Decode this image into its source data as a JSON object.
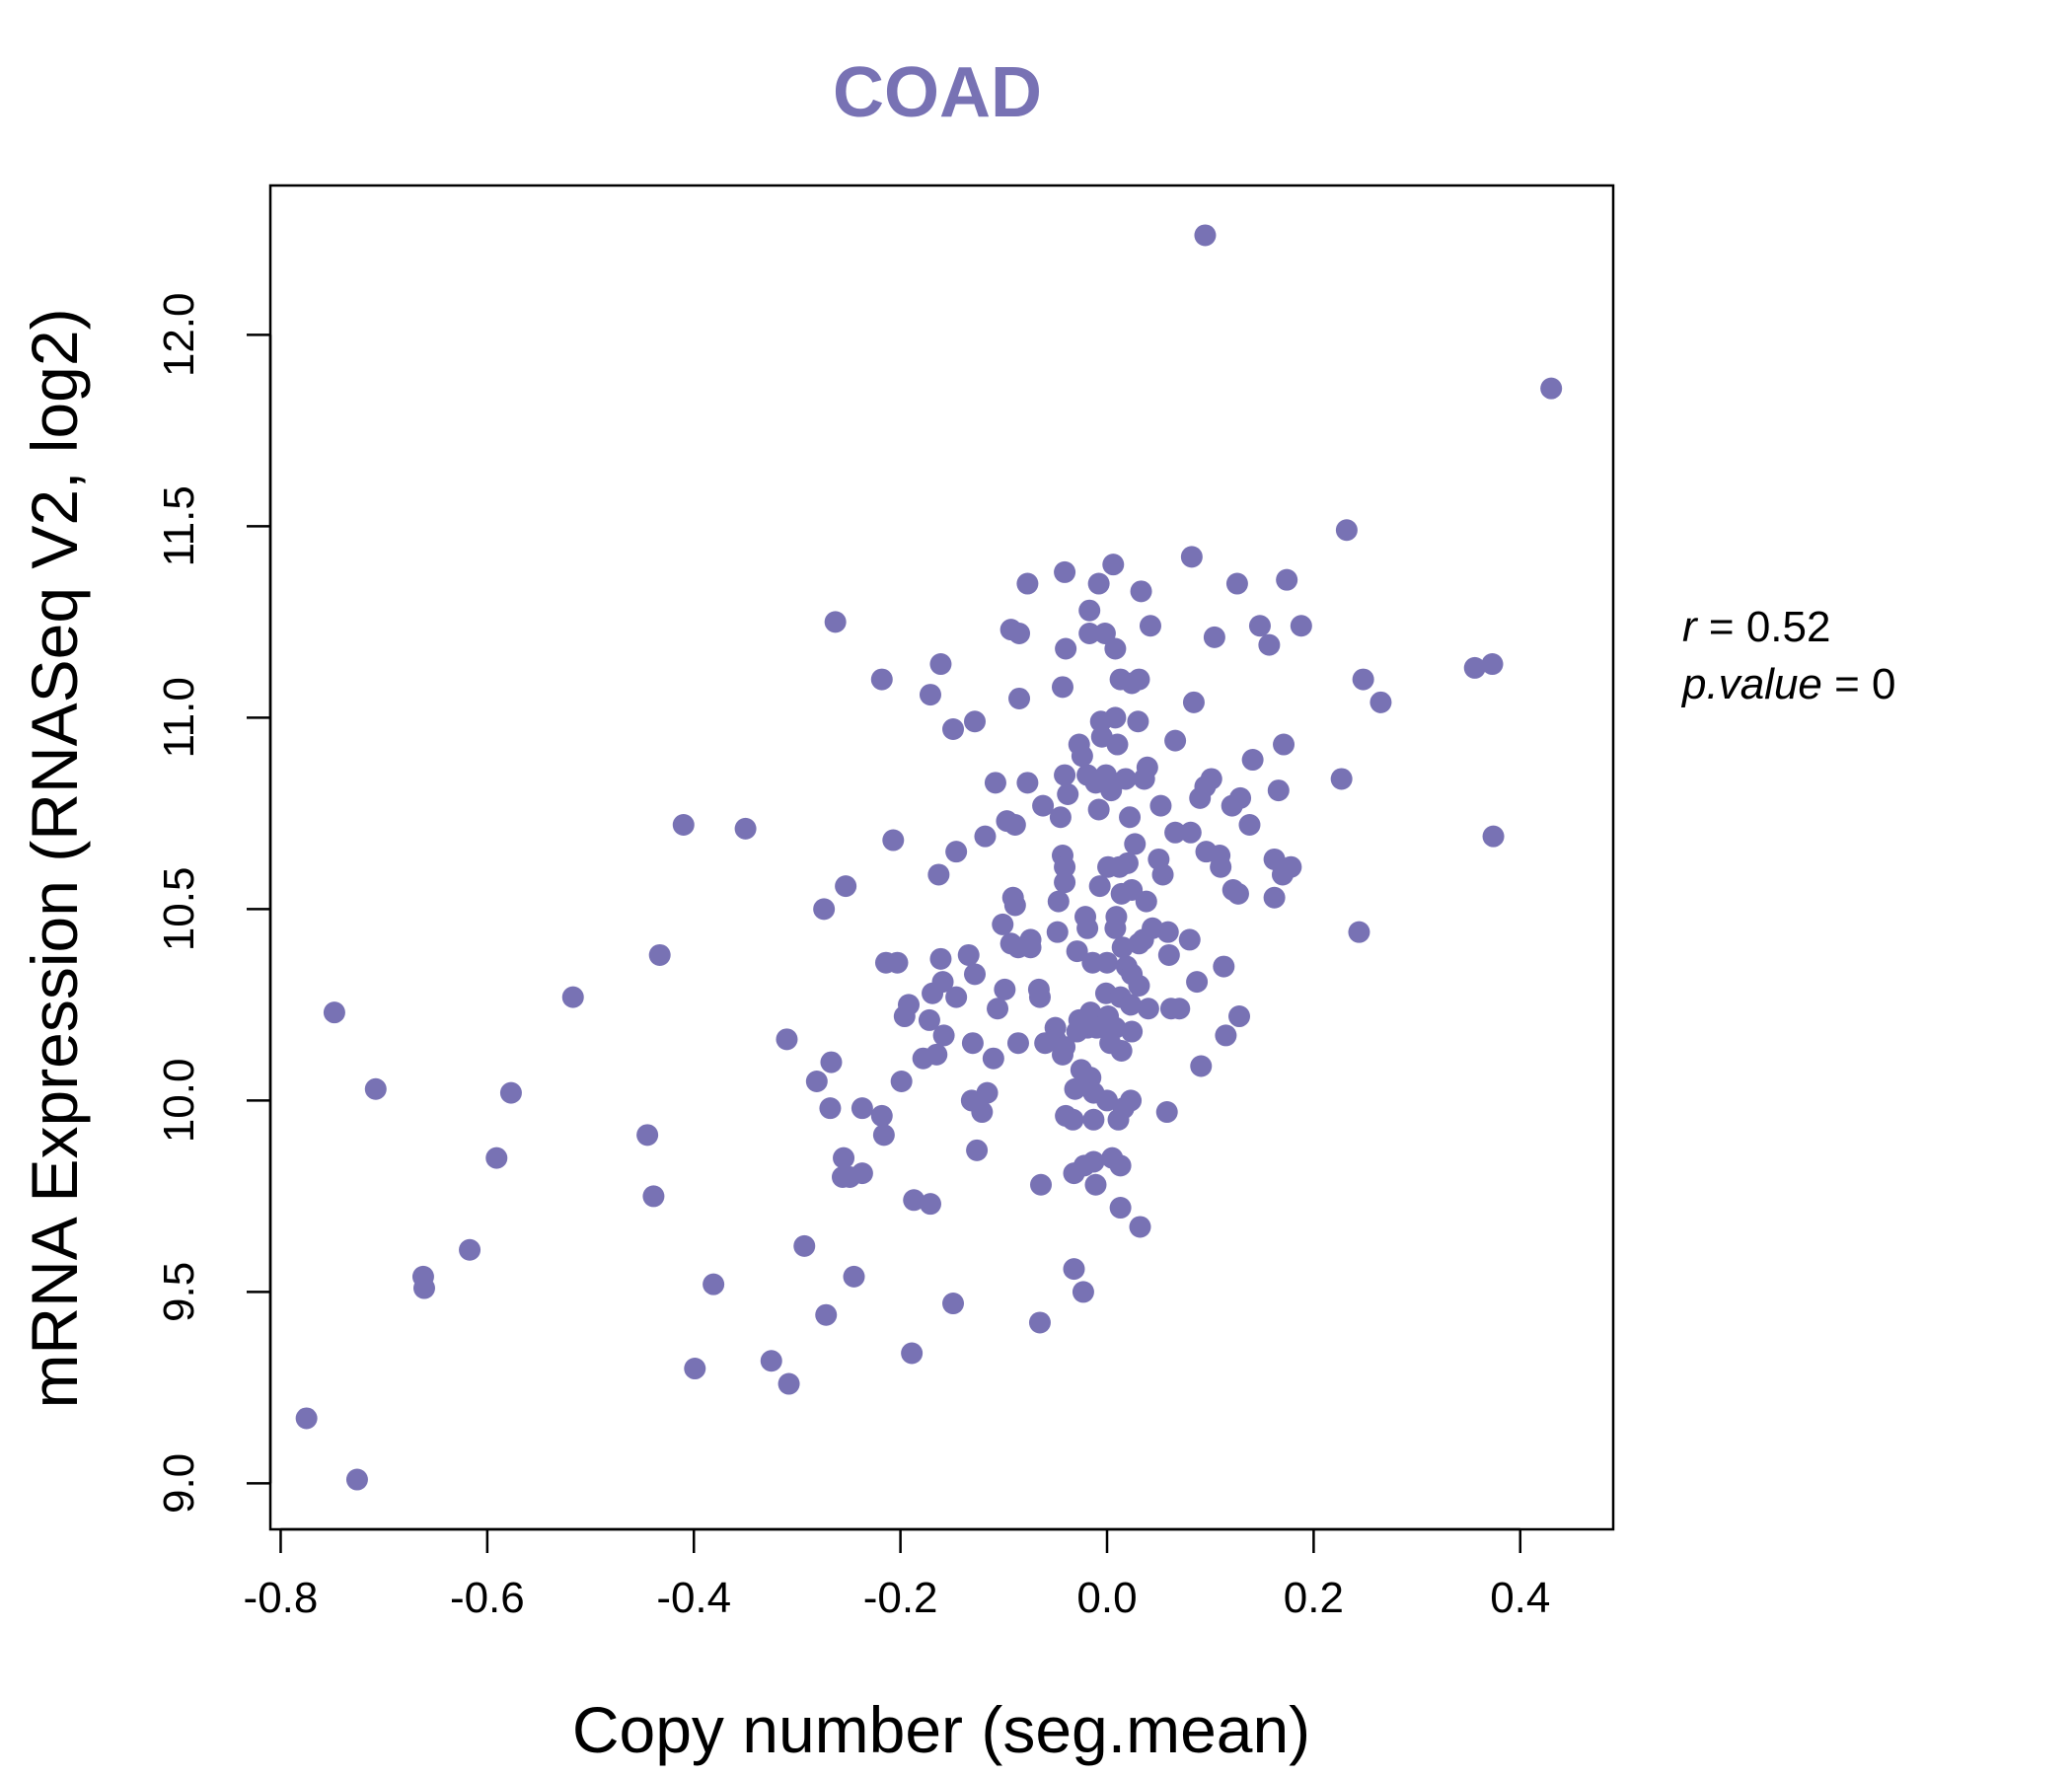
{
  "chart_data": {
    "type": "scatter",
    "title": "COAD",
    "xlabel": "Copy number (seg.mean)",
    "ylabel": "mRNA Expression (RNASeq V2, log2)",
    "xlim": [
      -0.81,
      0.49
    ],
    "ylim": [
      8.88,
      12.39
    ],
    "x_ticks": [
      -0.8,
      -0.6,
      -0.4,
      -0.2,
      0.0,
      0.2,
      0.4
    ],
    "x_tick_labels": [
      "-0.8",
      "-0.6",
      "-0.4",
      "-0.2",
      "0.0",
      "0.2",
      "0.4"
    ],
    "y_ticks": [
      9.0,
      9.5,
      10.0,
      10.5,
      11.0,
      11.5,
      12.0
    ],
    "y_tick_labels": [
      "9.0",
      "9.5",
      "10.0",
      "10.5",
      "11.0",
      "11.5",
      "12.0"
    ],
    "grid": false,
    "stats": {
      "r_label": "r",
      "r_value": "0.52",
      "p_label": "p.value",
      "p_value": "0"
    },
    "colors": {
      "points": "#7872b4",
      "title": "#7872b4",
      "axis": "#000000"
    },
    "points": [
      [
        0.095,
        12.26
      ],
      [
        0.43,
        11.86
      ],
      [
        0.232,
        11.49
      ],
      [
        0.082,
        11.42
      ],
      [
        0.006,
        11.4
      ],
      [
        0.174,
        11.36
      ],
      [
        0.126,
        11.35
      ],
      [
        -0.077,
        11.35
      ],
      [
        -0.041,
        11.38
      ],
      [
        -0.008,
        11.35
      ],
      [
        0.033,
        11.33
      ],
      [
        -0.263,
        11.25
      ],
      [
        -0.093,
        11.23
      ],
      [
        -0.017,
        11.28
      ],
      [
        0.042,
        11.24
      ],
      [
        0.148,
        11.24
      ],
      [
        0.188,
        11.24
      ],
      [
        -0.085,
        11.22
      ],
      [
        -0.017,
        11.22
      ],
      [
        -0.002,
        11.22
      ],
      [
        0.104,
        11.21
      ],
      [
        0.157,
        11.19
      ],
      [
        0.008,
        11.18
      ],
      [
        -0.04,
        11.18
      ],
      [
        -0.161,
        11.14
      ],
      [
        0.373,
        11.14
      ],
      [
        0.356,
        11.13
      ],
      [
        -0.218,
        11.1
      ],
      [
        0.031,
        11.1
      ],
      [
        0.013,
        11.1
      ],
      [
        0.024,
        11.09
      ],
      [
        0.248,
        11.1
      ],
      [
        -0.043,
        11.08
      ],
      [
        -0.085,
        11.05
      ],
      [
        -0.171,
        11.06
      ],
      [
        0.084,
        11.04
      ],
      [
        0.265,
        11.04
      ],
      [
        -0.128,
        10.99
      ],
      [
        -0.149,
        10.97
      ],
      [
        0.008,
        11.0
      ],
      [
        -0.006,
        10.99
      ],
      [
        0.03,
        10.99
      ],
      [
        -0.005,
        10.95
      ],
      [
        0.066,
        10.94
      ],
      [
        -0.027,
        10.93
      ],
      [
        0.01,
        10.93
      ],
      [
        0.171,
        10.93
      ],
      [
        -0.024,
        10.9
      ],
      [
        0.141,
        10.89
      ],
      [
        0.039,
        10.87
      ],
      [
        -0.041,
        10.85
      ],
      [
        -0.019,
        10.85
      ],
      [
        -0.001,
        10.85
      ],
      [
        0.018,
        10.84
      ],
      [
        0.101,
        10.84
      ],
      [
        0.036,
        10.84
      ],
      [
        0.227,
        10.84
      ],
      [
        -0.108,
        10.83
      ],
      [
        -0.077,
        10.83
      ],
      [
        -0.011,
        10.83
      ],
      [
        0.095,
        10.82
      ],
      [
        0.004,
        10.81
      ],
      [
        0.166,
        10.81
      ],
      [
        0.129,
        10.79
      ],
      [
        -0.038,
        10.8
      ],
      [
        0.121,
        10.77
      ],
      [
        0.052,
        10.77
      ],
      [
        -0.062,
        10.77
      ],
      [
        -0.008,
        10.76
      ],
      [
        0.09,
        10.79
      ],
      [
        -0.045,
        10.74
      ],
      [
        0.022,
        10.74
      ],
      [
        -0.097,
        10.73
      ],
      [
        0.138,
        10.72
      ],
      [
        -0.089,
        10.72
      ],
      [
        -0.41,
        10.72
      ],
      [
        -0.35,
        10.71
      ],
      [
        0.066,
        10.7
      ],
      [
        0.081,
        10.7
      ],
      [
        0.374,
        10.69
      ],
      [
        -0.118,
        10.69
      ],
      [
        -0.207,
        10.68
      ],
      [
        0.027,
        10.67
      ],
      [
        0.096,
        10.65
      ],
      [
        -0.146,
        10.65
      ],
      [
        -0.043,
        10.64
      ],
      [
        0.109,
        10.64
      ],
      [
        0.162,
        10.63
      ],
      [
        0.05,
        10.63
      ],
      [
        0.02,
        10.62
      ],
      [
        0.012,
        10.61
      ],
      [
        0.001,
        10.61
      ],
      [
        -0.041,
        10.61
      ],
      [
        0.178,
        10.61
      ],
      [
        0.11,
        10.61
      ],
      [
        0.054,
        10.59
      ],
      [
        0.17,
        10.59
      ],
      [
        -0.163,
        10.59
      ],
      [
        -0.041,
        10.57
      ],
      [
        -0.253,
        10.56
      ],
      [
        -0.007,
        10.56
      ],
      [
        0.024,
        10.55
      ],
      [
        0.122,
        10.55
      ],
      [
        0.127,
        10.54
      ],
      [
        0.014,
        10.54
      ],
      [
        -0.091,
        10.53
      ],
      [
        0.162,
        10.53
      ],
      [
        -0.047,
        10.52
      ],
      [
        0.038,
        10.52
      ],
      [
        -0.089,
        10.51
      ],
      [
        -0.274,
        10.5
      ],
      [
        0.009,
        10.48
      ],
      [
        -0.021,
        10.48
      ],
      [
        -0.101,
        10.46
      ],
      [
        -0.019,
        10.45
      ],
      [
        0.044,
        10.45
      ],
      [
        0.008,
        10.45
      ],
      [
        -0.048,
        10.44
      ],
      [
        0.059,
        10.44
      ],
      [
        0.244,
        10.44
      ],
      [
        0.035,
        10.42
      ],
      [
        0.08,
        10.42
      ],
      [
        -0.074,
        10.42
      ],
      [
        -0.093,
        10.41
      ],
      [
        0.031,
        10.41
      ],
      [
        -0.086,
        10.4
      ],
      [
        -0.074,
        10.4
      ],
      [
        0.015,
        10.4
      ],
      [
        0.06,
        10.38
      ],
      [
        -0.029,
        10.39
      ],
      [
        -0.433,
        10.38
      ],
      [
        -0.134,
        10.38
      ],
      [
        -0.161,
        10.37
      ],
      [
        -0.014,
        10.36
      ],
      [
        0.0,
        10.36
      ],
      [
        -0.214,
        10.36
      ],
      [
        -0.203,
        10.36
      ],
      [
        0.113,
        10.35
      ],
      [
        0.019,
        10.35
      ],
      [
        0.024,
        10.33
      ],
      [
        -0.128,
        10.33
      ],
      [
        -0.159,
        10.31
      ],
      [
        0.087,
        10.31
      ],
      [
        0.031,
        10.3
      ],
      [
        -0.099,
        10.29
      ],
      [
        -0.066,
        10.29
      ],
      [
        -0.169,
        10.28
      ],
      [
        -0.001,
        10.28
      ],
      [
        0.013,
        10.27
      ],
      [
        -0.146,
        10.27
      ],
      [
        -0.517,
        10.27
      ],
      [
        -0.065,
        10.27
      ],
      [
        0.023,
        10.25
      ],
      [
        -0.192,
        10.25
      ],
      [
        0.04,
        10.24
      ],
      [
        0.062,
        10.24
      ],
      [
        0.07,
        10.24
      ],
      [
        -0.106,
        10.24
      ],
      [
        -0.748,
        10.23
      ],
      [
        -0.016,
        10.23
      ],
      [
        0.001,
        10.22
      ],
      [
        -0.196,
        10.22
      ],
      [
        0.128,
        10.22
      ],
      [
        -0.027,
        10.21
      ],
      [
        -0.172,
        10.21
      ],
      [
        -0.019,
        10.19
      ],
      [
        0.008,
        10.19
      ],
      [
        -0.05,
        10.19
      ],
      [
        -0.029,
        10.18
      ],
      [
        0.024,
        10.18
      ],
      [
        -0.01,
        10.19
      ],
      [
        -0.158,
        10.17
      ],
      [
        0.115,
        10.17
      ],
      [
        -0.31,
        10.16
      ],
      [
        -0.05,
        10.16
      ],
      [
        -0.086,
        10.15
      ],
      [
        -0.13,
        10.15
      ],
      [
        0.003,
        10.15
      ],
      [
        -0.06,
        10.15
      ],
      [
        -0.041,
        10.14
      ],
      [
        0.014,
        10.13
      ],
      [
        -0.165,
        10.12
      ],
      [
        -0.043,
        10.12
      ],
      [
        -0.178,
        10.11
      ],
      [
        -0.11,
        10.11
      ],
      [
        -0.267,
        10.1
      ],
      [
        0.091,
        10.09
      ],
      [
        -0.025,
        10.08
      ],
      [
        -0.199,
        10.05
      ],
      [
        -0.281,
        10.05
      ],
      [
        -0.016,
        10.06
      ],
      [
        -0.708,
        10.03
      ],
      [
        -0.577,
        10.02
      ],
      [
        -0.013,
        10.02
      ],
      [
        -0.031,
        10.03
      ],
      [
        -0.116,
        10.02
      ],
      [
        -0.131,
        10.0
      ],
      [
        0.0,
        10.0
      ],
      [
        0.023,
        10.0
      ],
      [
        -0.237,
        9.98
      ],
      [
        -0.268,
        9.98
      ],
      [
        0.016,
        9.98
      ],
      [
        -0.121,
        9.97
      ],
      [
        0.058,
        9.97
      ],
      [
        -0.218,
        9.96
      ],
      [
        -0.04,
        9.96
      ],
      [
        -0.013,
        9.95
      ],
      [
        0.011,
        9.95
      ],
      [
        -0.033,
        9.95
      ],
      [
        -0.216,
        9.91
      ],
      [
        -0.445,
        9.91
      ],
      [
        -0.126,
        9.87
      ],
      [
        -0.255,
        9.85
      ],
      [
        -0.591,
        9.85
      ],
      [
        0.005,
        9.85
      ],
      [
        0.013,
        9.83
      ],
      [
        -0.022,
        9.83
      ],
      [
        -0.013,
        9.84
      ],
      [
        -0.032,
        9.81
      ],
      [
        -0.237,
        9.81
      ],
      [
        -0.249,
        9.8
      ],
      [
        -0.256,
        9.8
      ],
      [
        -0.064,
        9.78
      ],
      [
        -0.011,
        9.78
      ],
      [
        -0.439,
        9.75
      ],
      [
        -0.187,
        9.74
      ],
      [
        -0.171,
        9.73
      ],
      [
        0.013,
        9.72
      ],
      [
        0.032,
        9.67
      ],
      [
        -0.617,
        9.61
      ],
      [
        -0.293,
        9.62
      ],
      [
        -0.032,
        9.56
      ],
      [
        -0.245,
        9.54
      ],
      [
        -0.662,
        9.54
      ],
      [
        -0.661,
        9.51
      ],
      [
        -0.381,
        9.52
      ],
      [
        -0.023,
        9.5
      ],
      [
        -0.149,
        9.47
      ],
      [
        -0.272,
        9.44
      ],
      [
        -0.065,
        9.42
      ],
      [
        -0.189,
        9.34
      ],
      [
        -0.325,
        9.32
      ],
      [
        -0.399,
        9.3
      ],
      [
        -0.308,
        9.26
      ],
      [
        -0.775,
        9.17
      ],
      [
        -0.726,
        9.01
      ]
    ]
  }
}
